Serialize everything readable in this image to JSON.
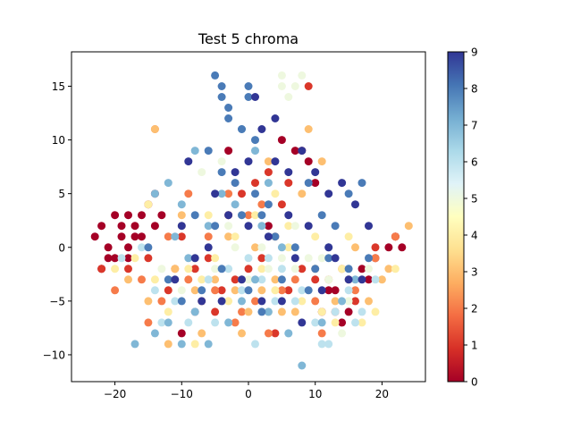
{
  "chart_data": {
    "type": "scatter",
    "title": "Test 5 chroma",
    "xlabel": "",
    "ylabel": "",
    "xlim": [
      -26.5,
      26.5
    ],
    "ylim": [
      -12.5,
      18.2
    ],
    "xticks": [
      -20,
      -10,
      0,
      10,
      20
    ],
    "yticks": [
      -10,
      -5,
      0,
      5,
      10,
      15
    ],
    "grid": false,
    "colormap": "RdYlBu",
    "colorbar": {
      "min": 0,
      "max": 9,
      "ticks": [
        0,
        1,
        2,
        3,
        4,
        5,
        6,
        7,
        8,
        9
      ]
    },
    "clusters": [
      {
        "label": 0,
        "points": [
          [
            -23,
            1
          ],
          [
            -22,
            2
          ],
          [
            -21,
            0
          ],
          [
            -20,
            3
          ],
          [
            -19,
            1
          ],
          [
            -19,
            2
          ],
          [
            -18,
            0
          ],
          [
            -17,
            2
          ],
          [
            -17,
            1
          ],
          [
            -16,
            3
          ],
          [
            -15,
            4
          ],
          [
            -14,
            5
          ],
          [
            -13,
            3
          ],
          [
            -21,
            -1
          ],
          [
            -20,
            -1
          ],
          [
            -18,
            3
          ],
          [
            -16,
            1
          ],
          [
            -14,
            2
          ],
          [
            -22,
            -2
          ],
          [
            -18,
            -1
          ],
          [
            5,
            10
          ],
          [
            7,
            9
          ],
          [
            9,
            8
          ],
          [
            10,
            6
          ],
          [
            12,
            -4
          ],
          [
            13,
            -4
          ],
          [
            14,
            -7
          ],
          [
            15,
            -6
          ],
          [
            11,
            -6
          ],
          [
            17,
            -2
          ],
          [
            18,
            -3
          ],
          [
            19,
            -1
          ],
          [
            21,
            0
          ],
          [
            22,
            1
          ],
          [
            23,
            0
          ],
          [
            -8,
            -6
          ],
          [
            -3,
            9
          ],
          [
            3,
            2
          ],
          [
            -10,
            -8
          ]
        ]
      },
      {
        "label": 1,
        "points": [
          [
            -22,
            -2
          ],
          [
            -18,
            -2
          ],
          [
            -15,
            -1
          ],
          [
            -10,
            1
          ],
          [
            -6,
            -1
          ],
          [
            -4,
            -4
          ],
          [
            -2,
            -3
          ],
          [
            0,
            -2
          ],
          [
            2,
            -1
          ],
          [
            1,
            6
          ],
          [
            3,
            7
          ],
          [
            5,
            4
          ],
          [
            -12,
            -4
          ],
          [
            -8,
            -2
          ],
          [
            -5,
            -6
          ],
          [
            6,
            -4
          ],
          [
            8,
            -2
          ],
          [
            10,
            -3
          ],
          [
            13,
            -6
          ],
          [
            16,
            -5
          ],
          [
            19,
            0
          ],
          [
            22,
            1
          ],
          [
            9,
            15
          ],
          [
            4,
            -8
          ],
          [
            -3,
            3
          ],
          [
            -1,
            5
          ],
          [
            8,
            9
          ],
          [
            6,
            6
          ]
        ]
      },
      {
        "label": 2,
        "points": [
          [
            -20,
            -4
          ],
          [
            -16,
            -3
          ],
          [
            -13,
            -5
          ],
          [
            -11,
            -2
          ],
          [
            -9,
            -3
          ],
          [
            -7,
            -5
          ],
          [
            -5,
            -4
          ],
          [
            -2,
            -7
          ],
          [
            -1,
            -6
          ],
          [
            1,
            -5
          ],
          [
            3,
            -8
          ],
          [
            5,
            -4
          ],
          [
            7,
            -3
          ],
          [
            10,
            -5
          ],
          [
            12,
            -3
          ],
          [
            14,
            -2
          ],
          [
            16,
            -4
          ],
          [
            19,
            -1
          ],
          [
            22,
            1
          ],
          [
            -14,
            11
          ],
          [
            -3,
            5
          ],
          [
            0,
            3
          ],
          [
            -6,
            1
          ],
          [
            -9,
            5
          ],
          [
            2,
            4
          ],
          [
            4,
            1
          ],
          [
            -15,
            -7
          ],
          [
            11,
            -8
          ],
          [
            -12,
            1
          ]
        ]
      },
      {
        "label": 3,
        "points": [
          [
            -14,
            11
          ],
          [
            -18,
            -3
          ],
          [
            -15,
            -5
          ],
          [
            -11,
            -2
          ],
          [
            -8,
            -4
          ],
          [
            -5,
            -3
          ],
          [
            -2,
            -4
          ],
          [
            0,
            -6
          ],
          [
            2,
            -4
          ],
          [
            4,
            -3
          ],
          [
            7,
            -6
          ],
          [
            9,
            11
          ],
          [
            13,
            -5
          ],
          [
            15,
            -3
          ],
          [
            18,
            -5
          ],
          [
            20,
            -3
          ],
          [
            24,
            2
          ],
          [
            -12,
            -9
          ],
          [
            -7,
            -8
          ],
          [
            -1,
            -8
          ],
          [
            5,
            -6
          ],
          [
            10,
            -2
          ],
          [
            16,
            0
          ],
          [
            21,
            -2
          ],
          [
            -3,
            1
          ],
          [
            1,
            0
          ],
          [
            -10,
            3
          ],
          [
            3,
            8
          ],
          [
            8,
            5
          ],
          [
            11,
            8
          ]
        ]
      },
      {
        "label": 4,
        "points": [
          [
            -20,
            -2
          ],
          [
            -17,
            -1
          ],
          [
            -14,
            -3
          ],
          [
            -12,
            -6
          ],
          [
            -9,
            -2
          ],
          [
            -7,
            -3
          ],
          [
            -5,
            -1
          ],
          [
            -3,
            -5
          ],
          [
            -1,
            -3
          ],
          [
            2,
            -2
          ],
          [
            4,
            -4
          ],
          [
            6,
            0
          ],
          [
            8,
            -5
          ],
          [
            11,
            -6
          ],
          [
            14,
            -2
          ],
          [
            17,
            -7
          ],
          [
            19,
            -6
          ],
          [
            22,
            -2
          ],
          [
            -15,
            4
          ],
          [
            -10,
            2
          ],
          [
            -6,
            3
          ],
          [
            -2,
            1
          ],
          [
            1,
            3
          ],
          [
            4,
            5
          ],
          [
            6,
            2
          ],
          [
            10,
            1
          ],
          [
            3,
            -6
          ],
          [
            -8,
            -9
          ],
          [
            13,
            -7
          ],
          [
            15,
            1
          ]
        ]
      },
      {
        "label": 5,
        "points": [
          [
            -13,
            -2
          ],
          [
            -10,
            -4
          ],
          [
            -8,
            -1
          ],
          [
            -5,
            -2
          ],
          [
            -2,
            0
          ],
          [
            0,
            -3
          ],
          [
            2,
            0
          ],
          [
            5,
            -1
          ],
          [
            7,
            -2
          ],
          [
            9,
            -1
          ],
          [
            12,
            -3
          ],
          [
            15,
            -5
          ],
          [
            18,
            -2
          ],
          [
            -7,
            7
          ],
          [
            -4,
            8
          ],
          [
            5,
            16
          ],
          [
            7,
            15
          ],
          [
            8,
            16
          ],
          [
            6,
            14
          ],
          [
            5,
            15
          ],
          [
            7,
            2
          ],
          [
            3,
            -2
          ],
          [
            -3,
            2
          ],
          [
            11,
            -1
          ],
          [
            14,
            -8
          ],
          [
            -6,
            -3
          ]
        ]
      },
      {
        "label": 6,
        "points": [
          [
            -19,
            -1
          ],
          [
            -16,
            0
          ],
          [
            -14,
            -4
          ],
          [
            -11,
            -5
          ],
          [
            -9,
            -7
          ],
          [
            -6,
            -3
          ],
          [
            -3,
            -2
          ],
          [
            0,
            -1
          ],
          [
            2,
            -3
          ],
          [
            5,
            -2
          ],
          [
            7,
            -5
          ],
          [
            10,
            -7
          ],
          [
            11,
            -9
          ],
          [
            13,
            -6
          ],
          [
            15,
            -4
          ],
          [
            17,
            -6
          ],
          [
            -13,
            -7
          ],
          [
            -8,
            -6
          ],
          [
            -4,
            -5
          ],
          [
            1,
            -9
          ],
          [
            4,
            -5
          ],
          [
            8,
            -4
          ],
          [
            12,
            -9
          ],
          [
            16,
            -7
          ],
          [
            19,
            -3
          ],
          [
            -5,
            -7
          ],
          [
            3,
            -1
          ],
          [
            -1,
            -4
          ],
          [
            6,
            -8
          ]
        ]
      },
      {
        "label": 7,
        "points": [
          [
            -17,
            -9
          ],
          [
            -14,
            -8
          ],
          [
            -12,
            -7
          ],
          [
            -10,
            -9
          ],
          [
            -8,
            -6
          ],
          [
            -6,
            -9
          ],
          [
            -3,
            -7
          ],
          [
            -1,
            -5
          ],
          [
            1,
            -3
          ],
          [
            3,
            -6
          ],
          [
            6,
            -8
          ],
          [
            8,
            -11
          ],
          [
            11,
            -7
          ],
          [
            14,
            -5
          ],
          [
            16,
            -3
          ],
          [
            -14,
            5
          ],
          [
            -12,
            6
          ],
          [
            -10,
            4
          ],
          [
            -8,
            9
          ],
          [
            -4,
            5
          ],
          [
            -1,
            11
          ],
          [
            1,
            9
          ],
          [
            3,
            6
          ],
          [
            -11,
            1
          ],
          [
            -9,
            -1
          ],
          [
            -6,
            2
          ],
          [
            -2,
            4
          ],
          [
            2,
            2
          ],
          [
            5,
            0
          ],
          [
            12,
            0
          ]
        ]
      },
      {
        "label": 8,
        "points": [
          [
            -5,
            16
          ],
          [
            -4,
            15
          ],
          [
            -4,
            14
          ],
          [
            -3,
            13
          ],
          [
            0,
            15
          ],
          [
            0,
            14
          ],
          [
            -3,
            12
          ],
          [
            -1,
            11
          ],
          [
            1,
            10
          ],
          [
            -6,
            9
          ],
          [
            -4,
            7
          ],
          [
            -2,
            6
          ],
          [
            1,
            5
          ],
          [
            3,
            4
          ],
          [
            -8,
            3
          ],
          [
            -5,
            2
          ],
          [
            -1,
            3
          ],
          [
            2,
            3
          ],
          [
            -12,
            -3
          ],
          [
            -10,
            -5
          ],
          [
            -7,
            -4
          ],
          [
            -4,
            -2
          ],
          [
            0,
            -4
          ],
          [
            2,
            -6
          ],
          [
            5,
            -3
          ],
          [
            9,
            -4
          ],
          [
            12,
            -1
          ],
          [
            15,
            -2
          ],
          [
            18,
            -1
          ],
          [
            9,
            6
          ],
          [
            11,
            3
          ],
          [
            13,
            2
          ],
          [
            15,
            5
          ],
          [
            17,
            6
          ],
          [
            -15,
            0
          ],
          [
            4,
            1
          ],
          [
            7,
            0
          ],
          [
            10,
            -2
          ]
        ]
      },
      {
        "label": 9,
        "points": [
          [
            1,
            14
          ],
          [
            4,
            12
          ],
          [
            2,
            11
          ],
          [
            0,
            8
          ],
          [
            4,
            8
          ],
          [
            6,
            7
          ],
          [
            8,
            9
          ],
          [
            10,
            7
          ],
          [
            12,
            5
          ],
          [
            14,
            6
          ],
          [
            16,
            4
          ],
          [
            18,
            2
          ],
          [
            -10,
            2
          ],
          [
            -8,
            -1
          ],
          [
            -6,
            0
          ],
          [
            -3,
            3
          ],
          [
            0,
            2
          ],
          [
            3,
            1
          ],
          [
            6,
            3
          ],
          [
            9,
            2
          ],
          [
            12,
            0
          ],
          [
            15,
            -3
          ],
          [
            -1,
            -3
          ],
          [
            -4,
            -5
          ],
          [
            -7,
            -5
          ],
          [
            -11,
            -3
          ],
          [
            2,
            -5
          ],
          [
            5,
            -5
          ],
          [
            8,
            -7
          ],
          [
            11,
            -4
          ],
          [
            13,
            -1
          ],
          [
            17,
            -3
          ],
          [
            7,
            -1
          ],
          [
            -2,
            7
          ],
          [
            -5,
            5
          ],
          [
            -9,
            8
          ]
        ]
      }
    ]
  }
}
